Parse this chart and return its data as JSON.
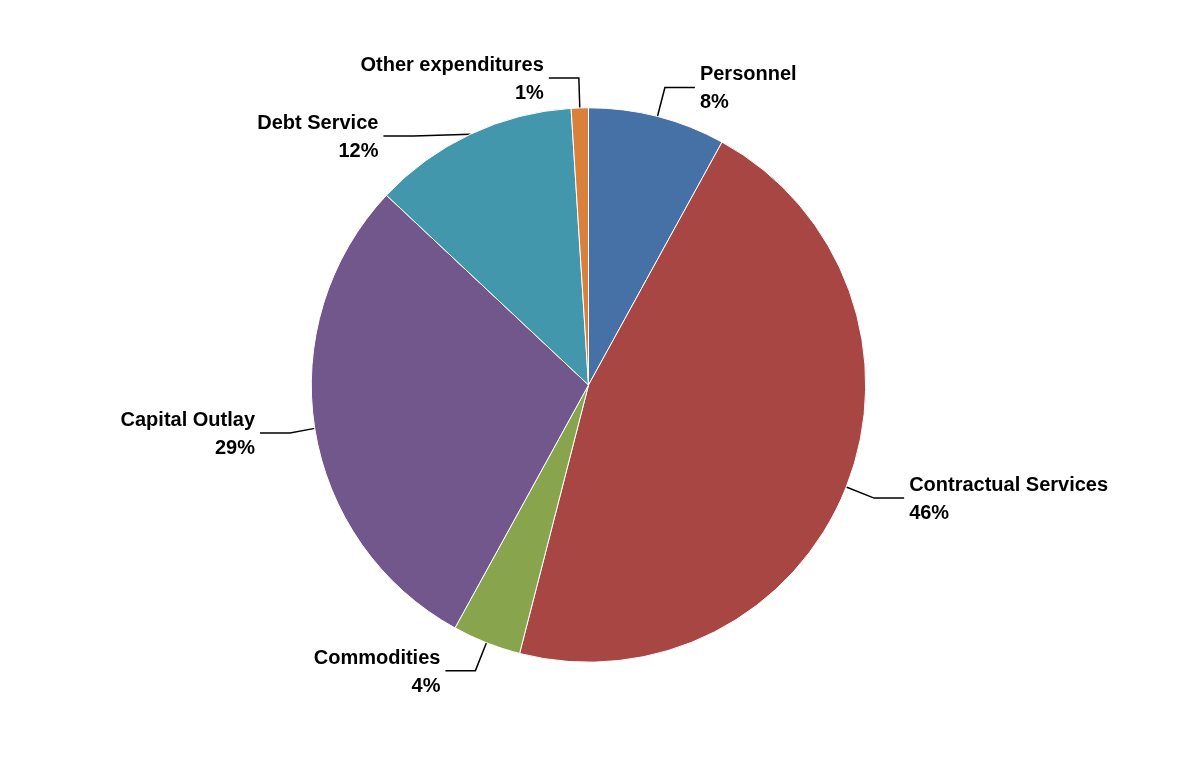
{
  "chart_data": {
    "type": "pie",
    "categories": [
      "Personnel",
      "Contractual Services",
      "Commodities",
      "Capital Outlay",
      "Debt Service",
      "Other expenditures"
    ],
    "values": [
      8,
      46,
      4,
      29,
      12,
      1
    ],
    "value_labels": [
      "8%",
      "46%",
      "4%",
      "29%",
      "12%",
      "1%"
    ],
    "colors": [
      "#4671a6",
      "#a84644",
      "#88a44c",
      "#72578c",
      "#4297ad",
      "#d9803a"
    ],
    "legend": false
  }
}
